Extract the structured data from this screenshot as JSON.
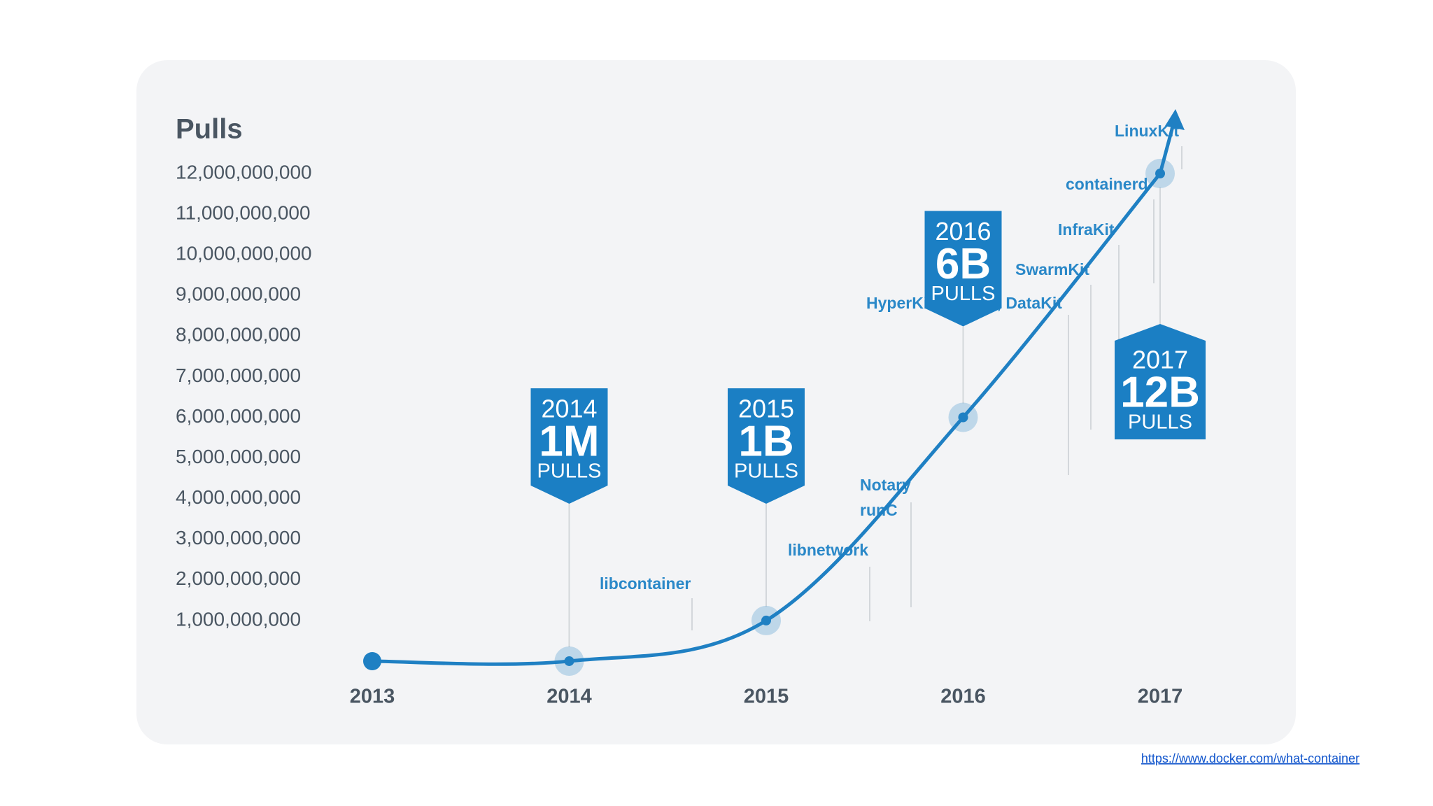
{
  "chart_data": {
    "type": "line",
    "y_label": "Pulls",
    "categories": [
      "2013",
      "2014",
      "2015",
      "2016",
      "2017"
    ],
    "values": [
      0,
      1000000,
      1000000000,
      6000000000,
      12000000000
    ],
    "value_labels": [
      null,
      "1M",
      "1B",
      "6B",
      "12B"
    ],
    "badge_unit": "PULLS",
    "color": "#1f80c3",
    "ylim": [
      0,
      12000000000
    ],
    "yticks": [
      {
        "value": 1000000000,
        "label": "1,000,000,000"
      },
      {
        "value": 2000000000,
        "label": "2,000,000,000"
      },
      {
        "value": 3000000000,
        "label": "3,000,000,000"
      },
      {
        "value": 4000000000,
        "label": "4,000,000,000"
      },
      {
        "value": 5000000000,
        "label": "5,000,000,000"
      },
      {
        "value": 6000000000,
        "label": "6,000,000,000"
      },
      {
        "value": 7000000000,
        "label": "7,000,000,000"
      },
      {
        "value": 8000000000,
        "label": "8,000,000,000"
      },
      {
        "value": 9000000000,
        "label": "9,000,000,000"
      },
      {
        "value": 10000000000,
        "label": "10,000,000,000"
      },
      {
        "value": 11000000000,
        "label": "11,000,000,000"
      },
      {
        "value": 12000000000,
        "label": "12,000,000,000"
      }
    ],
    "annotations": [
      "libcontainer",
      "libnetwork",
      "Notary",
      "runC",
      "HyperKit, VPNKit, DataKit",
      "SwarmKit",
      "InfraKit",
      "containerd",
      "LinuxKit"
    ],
    "source": "https://www.docker.com/what-container"
  }
}
